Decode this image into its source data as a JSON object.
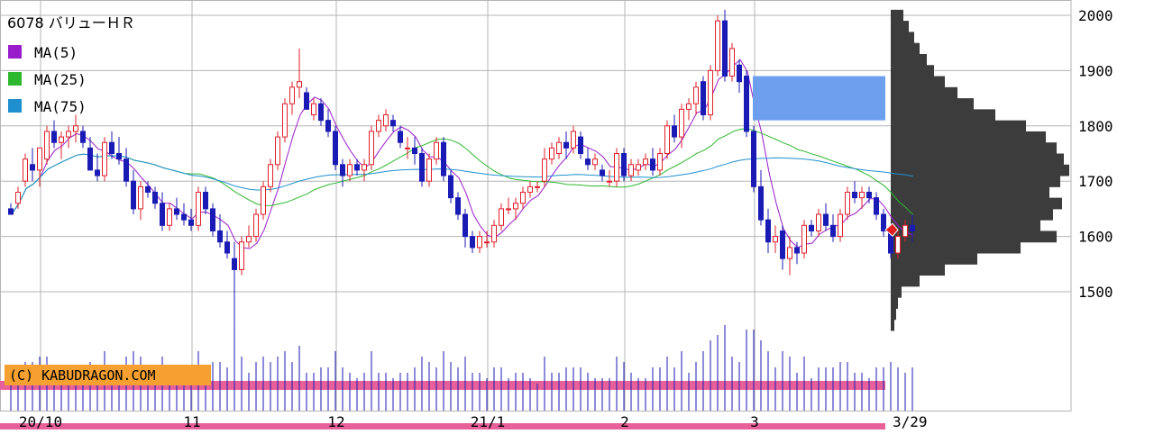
{
  "title": "6078 バリューＨＲ",
  "copyright": "(C) KABUDRAGON.COM",
  "legend": [
    {
      "label": "MA(5)",
      "color": "#9a1dcb"
    },
    {
      "label": "MA(25)",
      "color": "#2eb82e"
    },
    {
      "label": "MA(75)",
      "color": "#1e90d0"
    }
  ],
  "colors": {
    "up": "#e0202a",
    "down": "#1a1ab4",
    "grid": "#b4b4b4",
    "profile": "#3c3c3c",
    "volume": "#1a1ab4",
    "band": "#e8609a",
    "copyright_bg": "#f5a030",
    "box": "#6e9fee",
    "marker": "#e02020"
  },
  "chart_data": {
    "type": "candlestick",
    "title": "6078 バリューＨＲ",
    "ylim": [
      1390,
      2020
    ],
    "yticks": [
      2000,
      1900,
      1800,
      1700,
      1600,
      1500
    ],
    "ytick_labels": [
      "2000",
      "1900",
      "1800",
      "1700",
      "1600",
      "1500"
    ],
    "xtick_labels": [
      {
        "label": "20/10",
        "index": 4
      },
      {
        "label": "11",
        "index": 25
      },
      {
        "label": "12",
        "index": 45
      },
      {
        "label": "21/1",
        "index": 66
      },
      {
        "label": "2",
        "index": 85
      },
      {
        "label": "3",
        "index": 103
      }
    ],
    "last_date_label": "3/29",
    "last_price": 1612,
    "candles": [
      [
        1650,
        1660,
        1640,
        1640
      ],
      [
        1660,
        1690,
        1650,
        1680
      ],
      [
        1700,
        1750,
        1690,
        1740
      ],
      [
        1730,
        1760,
        1700,
        1720
      ],
      [
        1720,
        1760,
        1690,
        1760
      ],
      [
        1740,
        1800,
        1730,
        1790
      ],
      [
        1790,
        1810,
        1760,
        1770
      ],
      [
        1770,
        1790,
        1740,
        1780
      ],
      [
        1780,
        1800,
        1760,
        1790
      ],
      [
        1790,
        1820,
        1770,
        1800
      ],
      [
        1790,
        1800,
        1760,
        1770
      ],
      [
        1760,
        1780,
        1720,
        1720
      ],
      [
        1720,
        1750,
        1700,
        1710
      ],
      [
        1710,
        1780,
        1700,
        1770
      ],
      [
        1770,
        1790,
        1740,
        1750
      ],
      [
        1750,
        1780,
        1730,
        1740
      ],
      [
        1740,
        1760,
        1690,
        1700
      ],
      [
        1700,
        1720,
        1640,
        1650
      ],
      [
        1650,
        1700,
        1630,
        1690
      ],
      [
        1690,
        1700,
        1670,
        1680
      ],
      [
        1680,
        1690,
        1650,
        1660
      ],
      [
        1660,
        1680,
        1610,
        1620
      ],
      [
        1620,
        1660,
        1610,
        1650
      ],
      [
        1650,
        1670,
        1630,
        1640
      ],
      [
        1640,
        1660,
        1620,
        1630
      ],
      [
        1630,
        1650,
        1610,
        1620
      ],
      [
        1620,
        1690,
        1610,
        1680
      ],
      [
        1680,
        1690,
        1640,
        1650
      ],
      [
        1650,
        1660,
        1600,
        1610
      ],
      [
        1610,
        1640,
        1580,
        1590
      ],
      [
        1590,
        1610,
        1560,
        1570
      ],
      [
        1560,
        1590,
        1440,
        1540
      ],
      [
        1540,
        1600,
        1530,
        1590
      ],
      [
        1590,
        1620,
        1580,
        1600
      ],
      [
        1600,
        1650,
        1590,
        1640
      ],
      [
        1640,
        1700,
        1630,
        1690
      ],
      [
        1690,
        1740,
        1680,
        1730
      ],
      [
        1730,
        1790,
        1720,
        1780
      ],
      [
        1780,
        1850,
        1770,
        1840
      ],
      [
        1840,
        1880,
        1820,
        1870
      ],
      [
        1870,
        1940,
        1850,
        1880
      ],
      [
        1860,
        1870,
        1830,
        1830
      ],
      [
        1820,
        1850,
        1810,
        1840
      ],
      [
        1840,
        1850,
        1800,
        1810
      ],
      [
        1810,
        1830,
        1780,
        1790
      ],
      [
        1790,
        1800,
        1720,
        1730
      ],
      [
        1730,
        1740,
        1690,
        1710
      ],
      [
        1710,
        1740,
        1700,
        1730
      ],
      [
        1730,
        1740,
        1710,
        1720
      ],
      [
        1720,
        1740,
        1700,
        1730
      ],
      [
        1730,
        1800,
        1720,
        1790
      ],
      [
        1790,
        1820,
        1780,
        1810
      ],
      [
        1800,
        1830,
        1790,
        1820
      ],
      [
        1810,
        1820,
        1790,
        1800
      ],
      [
        1790,
        1800,
        1760,
        1770
      ],
      [
        1760,
        1780,
        1740,
        1760
      ],
      [
        1760,
        1780,
        1730,
        1750
      ],
      [
        1750,
        1760,
        1690,
        1700
      ],
      [
        1700,
        1750,
        1690,
        1740
      ],
      [
        1740,
        1780,
        1730,
        1770
      ],
      [
        1770,
        1780,
        1700,
        1710
      ],
      [
        1710,
        1720,
        1660,
        1670
      ],
      [
        1670,
        1680,
        1630,
        1640
      ],
      [
        1640,
        1650,
        1580,
        1600
      ],
      [
        1600,
        1610,
        1570,
        1580
      ],
      [
        1580,
        1610,
        1570,
        1600
      ],
      [
        1590,
        1610,
        1580,
        1590
      ],
      [
        1590,
        1630,
        1580,
        1620
      ],
      [
        1620,
        1660,
        1610,
        1650
      ],
      [
        1650,
        1670,
        1640,
        1650
      ],
      [
        1650,
        1670,
        1630,
        1660
      ],
      [
        1660,
        1690,
        1650,
        1680
      ],
      [
        1680,
        1700,
        1670,
        1690
      ],
      [
        1690,
        1700,
        1680,
        1690
      ],
      [
        1700,
        1760,
        1690,
        1740
      ],
      [
        1740,
        1770,
        1730,
        1760
      ],
      [
        1750,
        1780,
        1740,
        1770
      ],
      [
        1770,
        1790,
        1740,
        1760
      ],
      [
        1760,
        1800,
        1750,
        1790
      ],
      [
        1780,
        1790,
        1740,
        1750
      ],
      [
        1740,
        1760,
        1720,
        1730
      ],
      [
        1730,
        1750,
        1720,
        1740
      ],
      [
        1720,
        1730,
        1700,
        1710
      ],
      [
        1700,
        1720,
        1690,
        1700
      ],
      [
        1700,
        1760,
        1690,
        1750
      ],
      [
        1750,
        1760,
        1700,
        1710
      ],
      [
        1710,
        1740,
        1700,
        1730
      ],
      [
        1720,
        1740,
        1710,
        1730
      ],
      [
        1730,
        1750,
        1720,
        1740
      ],
      [
        1740,
        1760,
        1710,
        1720
      ],
      [
        1720,
        1760,
        1710,
        1750
      ],
      [
        1750,
        1810,
        1740,
        1800
      ],
      [
        1800,
        1820,
        1770,
        1780
      ],
      [
        1780,
        1840,
        1760,
        1830
      ],
      [
        1830,
        1850,
        1810,
        1840
      ],
      [
        1840,
        1880,
        1820,
        1870
      ],
      [
        1880,
        1890,
        1810,
        1820
      ],
      [
        1820,
        1910,
        1810,
        1900
      ],
      [
        1900,
        2000,
        1890,
        1990
      ],
      [
        1990,
        2010,
        1880,
        1890
      ],
      [
        1890,
        1950,
        1880,
        1940
      ],
      [
        1910,
        1920,
        1860,
        1880
      ],
      [
        1890,
        1900,
        1780,
        1790
      ],
      [
        1790,
        1800,
        1680,
        1690
      ],
      [
        1690,
        1720,
        1620,
        1630
      ],
      [
        1630,
        1650,
        1570,
        1590
      ],
      [
        1590,
        1620,
        1570,
        1600
      ],
      [
        1610,
        1620,
        1540,
        1560
      ],
      [
        1560,
        1600,
        1530,
        1580
      ],
      [
        1580,
        1590,
        1550,
        1570
      ],
      [
        1570,
        1630,
        1560,
        1620
      ],
      [
        1620,
        1630,
        1600,
        1610
      ],
      [
        1610,
        1650,
        1600,
        1640
      ],
      [
        1640,
        1660,
        1610,
        1620
      ],
      [
        1620,
        1640,
        1590,
        1600
      ],
      [
        1600,
        1650,
        1590,
        1640
      ],
      [
        1640,
        1690,
        1630,
        1680
      ],
      [
        1680,
        1700,
        1660,
        1670
      ],
      [
        1670,
        1690,
        1650,
        1680
      ],
      [
        1680,
        1690,
        1660,
        1670
      ],
      [
        1670,
        1680,
        1630,
        1640
      ],
      [
        1640,
        1650,
        1600,
        1610
      ],
      [
        1610,
        1620,
        1560,
        1570
      ],
      [
        1570,
        1610,
        1560,
        1600
      ],
      [
        1600,
        1630,
        1590,
        1620
      ],
      [
        1620,
        1640,
        1590,
        1610
      ]
    ],
    "volume_profile": [
      {
        "price": 2000,
        "size": 0.07
      },
      {
        "price": 1980,
        "size": 0.1
      },
      {
        "price": 1960,
        "size": 0.13
      },
      {
        "price": 1940,
        "size": 0.16
      },
      {
        "price": 1920,
        "size": 0.2
      },
      {
        "price": 1900,
        "size": 0.24
      },
      {
        "price": 1880,
        "size": 0.3
      },
      {
        "price": 1860,
        "size": 0.37
      },
      {
        "price": 1840,
        "size": 0.46
      },
      {
        "price": 1820,
        "size": 0.58
      },
      {
        "price": 1800,
        "size": 0.75
      },
      {
        "price": 1780,
        "size": 0.86
      },
      {
        "price": 1760,
        "size": 0.92
      },
      {
        "price": 1740,
        "size": 0.96
      },
      {
        "price": 1720,
        "size": 0.99
      },
      {
        "price": 1700,
        "size": 0.94
      },
      {
        "price": 1680,
        "size": 0.88
      },
      {
        "price": 1660,
        "size": 0.95
      },
      {
        "price": 1640,
        "size": 0.9
      },
      {
        "price": 1620,
        "size": 0.83
      },
      {
        "price": 1600,
        "size": 0.92
      },
      {
        "price": 1580,
        "size": 0.72
      },
      {
        "price": 1560,
        "size": 0.48
      },
      {
        "price": 1540,
        "size": 0.3
      },
      {
        "price": 1520,
        "size": 0.16
      },
      {
        "price": 1500,
        "size": 0.06
      },
      {
        "price": 1480,
        "size": 0.04
      },
      {
        "price": 1460,
        "size": 0.03
      },
      {
        "price": 1440,
        "size": 0.02
      }
    ],
    "resistance_box": {
      "price_top": 1890,
      "price_bottom": 1810,
      "from_index": 103
    }
  }
}
